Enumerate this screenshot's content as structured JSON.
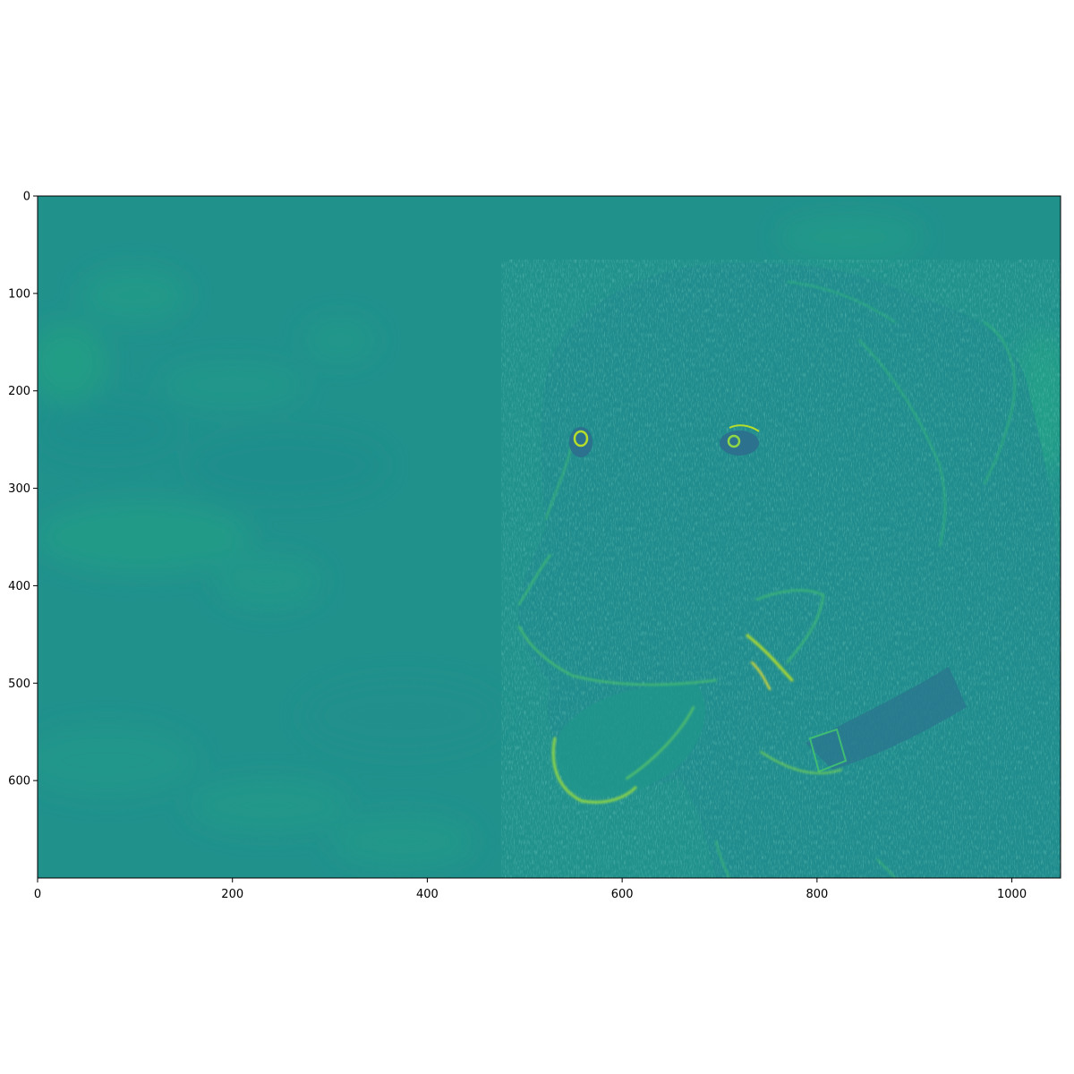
{
  "colormap": "viridis",
  "image": {
    "subject": "dog-head-edge-filter",
    "value_range": [
      0,
      1
    ],
    "background_level": 0.5
  },
  "axes": {
    "x": {
      "range": [
        0,
        1050
      ],
      "ticks": [
        0,
        200,
        400,
        600,
        800,
        1000
      ],
      "tick_labels": [
        "0",
        "200",
        "400",
        "600",
        "800",
        "1000"
      ]
    },
    "y": {
      "range": [
        0,
        700
      ],
      "inverted": true,
      "ticks": [
        0,
        100,
        200,
        300,
        400,
        500,
        600
      ],
      "tick_labels": [
        "0",
        "100",
        "200",
        "300",
        "400",
        "500",
        "600"
      ]
    }
  },
  "colors": {
    "frame": "#000000",
    "background": "#ffffff",
    "mid_teal": "#21908d",
    "bright_green": "#5ec962",
    "yellow": "#fde725",
    "dark_blue": "#31688e"
  }
}
